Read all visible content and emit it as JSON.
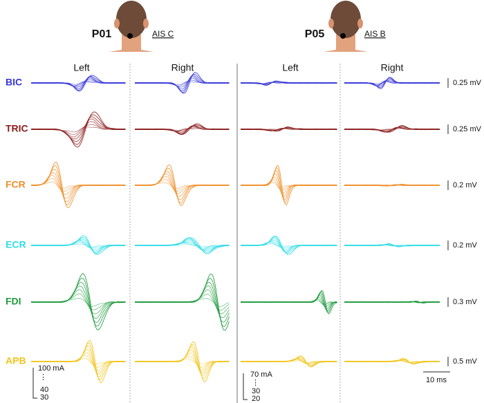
{
  "participants": [
    {
      "id": "P01",
      "ais": "AIS C",
      "sides": [
        "Left",
        "Right"
      ],
      "intensity": {
        "max": "100 mA",
        "dots": "⋮",
        "mid": "40",
        "min": "30"
      }
    },
    {
      "id": "P05",
      "ais": "AIS B",
      "sides": [
        "Left",
        "Right"
      ],
      "intensity": {
        "max": "70 mA",
        "dots": "⋮",
        "mid": "30",
        "min": "20"
      }
    }
  ],
  "muscles": [
    {
      "name": "BIC",
      "color": "#3636d8",
      "scale": "0.25 mV"
    },
    {
      "name": "TRIC",
      "color": "#8b1c1c",
      "scale": "0.25 mV"
    },
    {
      "name": "FCR",
      "color": "#ef8f2a",
      "scale": "0.2 mV"
    },
    {
      "name": "ECR",
      "color": "#30dce6",
      "scale": "0.2 mV"
    },
    {
      "name": "FDI",
      "color": "#1d9a3c",
      "scale": "0.3 mV"
    },
    {
      "name": "APB",
      "color": "#f2c51c",
      "scale": "0.5 mV"
    }
  ],
  "time_scale": "10 ms"
}
